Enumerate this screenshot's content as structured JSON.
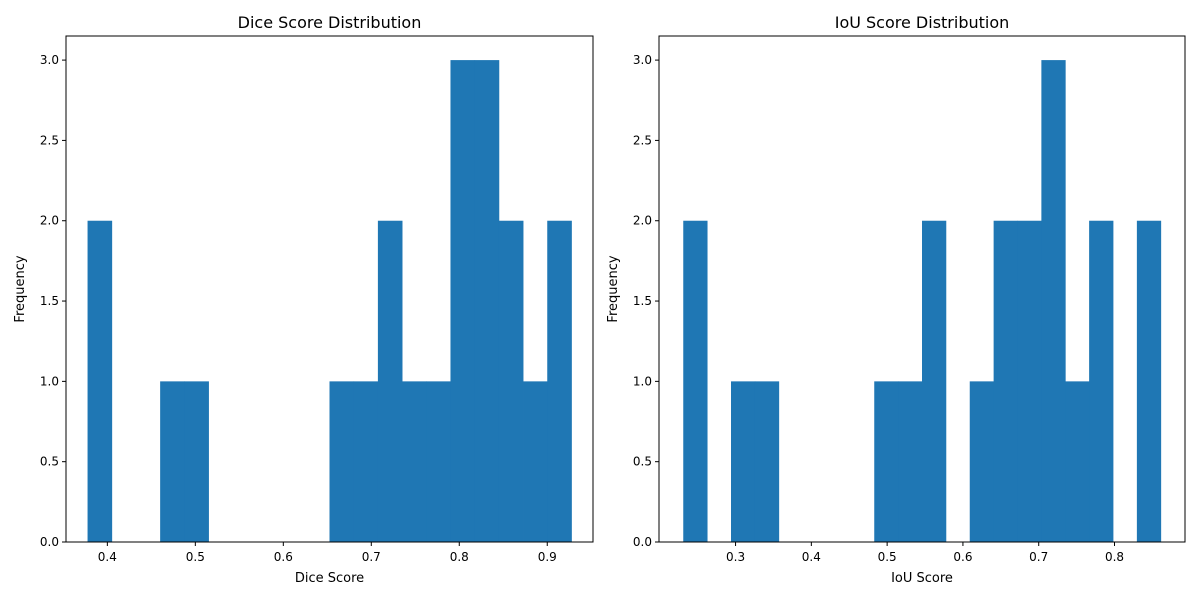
{
  "chart_data": [
    {
      "type": "histogram",
      "title": "Dice Score Distribution",
      "xlabel": "Dice Score",
      "ylabel": "Frequency",
      "color": "#1f77b4",
      "xlim": [
        0.353,
        0.952
      ],
      "ylim": [
        0,
        3.15
      ],
      "xticks": [
        0.4,
        0.5,
        0.6,
        0.7,
        0.8,
        0.9
      ],
      "yticks": [
        0.0,
        0.5,
        1.0,
        1.5,
        2.0,
        2.5,
        3.0
      ],
      "bin_start": 0.3775,
      "bin_width": 0.0275,
      "counts": [
        2,
        0,
        0,
        1,
        1,
        0,
        0,
        0,
        0,
        0,
        1,
        1,
        2,
        1,
        1,
        3,
        3,
        2,
        1,
        2
      ]
    },
    {
      "type": "histogram",
      "title": "IoU Score Distribution",
      "xlabel": "IoU Score",
      "ylabel": "Frequency",
      "color": "#1f77b4",
      "xlim": [
        0.199,
        0.893
      ],
      "ylim": [
        0,
        3.15
      ],
      "xticks": [
        0.3,
        0.4,
        0.5,
        0.6,
        0.7,
        0.8
      ],
      "yticks": [
        0.0,
        0.5,
        1.0,
        1.5,
        2.0,
        2.5,
        3.0
      ],
      "bin_start": 0.231,
      "bin_width": 0.0315,
      "counts": [
        2,
        0,
        1,
        1,
        0,
        0,
        0,
        0,
        1,
        1,
        2,
        0,
        1,
        2,
        2,
        3,
        1,
        2,
        0,
        2
      ]
    }
  ]
}
